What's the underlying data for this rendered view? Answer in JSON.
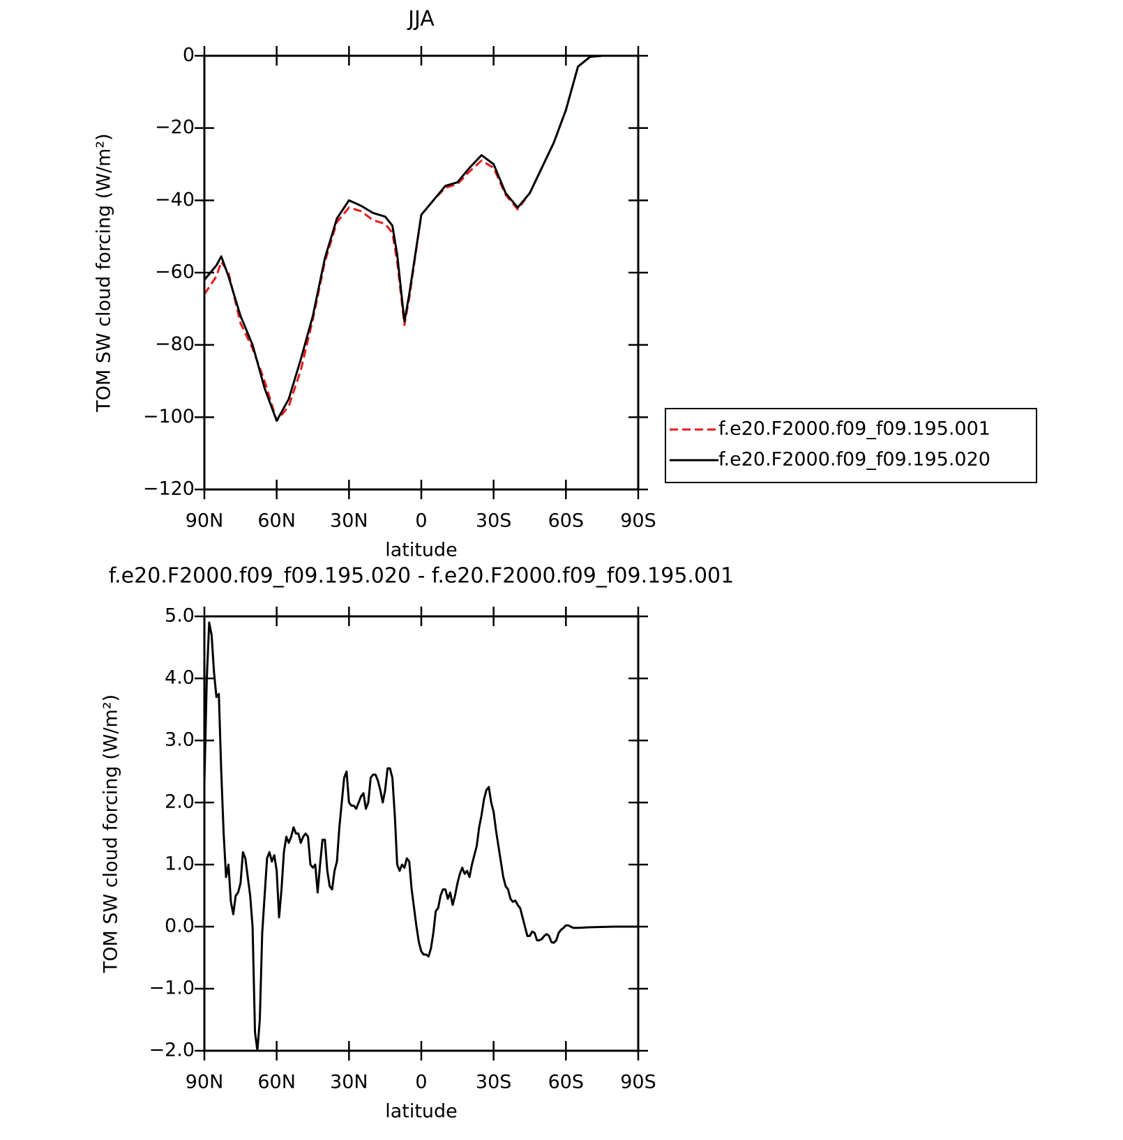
{
  "chart_data": [
    {
      "type": "line",
      "title": "JJA",
      "xlabel": "latitude",
      "ylabel": "TOM SW cloud forcing (W/m²)",
      "x": [
        90,
        85,
        83,
        80,
        75,
        70,
        65,
        60,
        55,
        50,
        45,
        40,
        35,
        30,
        25,
        20,
        15,
        12,
        10,
        7,
        5,
        0,
        -5,
        -10,
        -15,
        -20,
        -25,
        -30,
        -35,
        -40,
        -45,
        -50,
        -55,
        -60,
        -65,
        -70,
        -75,
        -80,
        -85,
        -90
      ],
      "series": [
        {
          "name": "f.e20.F2000.f09_f09.195.001",
          "color": "#e41a1c",
          "dashed": true,
          "values": [
            -66,
            -61,
            -57,
            -60,
            -74,
            -81,
            -90,
            -101,
            -97,
            -87,
            -73,
            -57,
            -46,
            -42,
            -43,
            -45.5,
            -46.5,
            -49,
            -57,
            -74.5,
            -67,
            -44,
            -40,
            -36.5,
            -35.5,
            -32,
            -29,
            -31,
            -38.5,
            -42.5,
            -38,
            -31,
            -24,
            -15,
            -3,
            -0.3,
            0,
            0,
            0,
            0
          ]
        },
        {
          "name": "f.e20.F2000.f09_f09.195.020",
          "color": "#000000",
          "dashed": false,
          "values": [
            -62,
            -58,
            -55.5,
            -61,
            -72,
            -80,
            -92,
            -101,
            -95,
            -84,
            -72,
            -56,
            -45,
            -40,
            -41.5,
            -43.5,
            -44.5,
            -47,
            -55,
            -73.5,
            -66,
            -44,
            -40,
            -36,
            -35,
            -31,
            -27.5,
            -30,
            -38,
            -42,
            -38,
            -31,
            -24,
            -15,
            -3,
            -0.3,
            0,
            0,
            0,
            0
          ]
        }
      ],
      "xlim": [
        90,
        -90
      ],
      "ylim": [
        -120,
        0
      ],
      "xticks": [
        {
          "value": 90,
          "label": "90N"
        },
        {
          "value": 60,
          "label": "60N"
        },
        {
          "value": 30,
          "label": "30N"
        },
        0,
        {
          "value": -30,
          "label": "30S"
        },
        {
          "value": -60,
          "label": "60S"
        },
        {
          "value": -90,
          "label": "90S"
        }
      ],
      "yticks": [
        0,
        {
          "value": -20,
          "label": "−20"
        },
        {
          "value": -40,
          "label": "−40"
        },
        {
          "value": -60,
          "label": "−60"
        },
        {
          "value": -80,
          "label": "−80"
        },
        {
          "value": -100,
          "label": "−100"
        },
        {
          "value": -120,
          "label": "−120"
        }
      ],
      "legend": "right"
    },
    {
      "type": "line",
      "title": "f.e20.F2000.f09_f09.195.020 - f.e20.F2000.f09_f09.195.001",
      "xlabel": "latitude",
      "ylabel": "TOM SW cloud forcing (W/m²)",
      "x": [
        90,
        89,
        88,
        87,
        86,
        85,
        84,
        83,
        82,
        81,
        80,
        79,
        78,
        77,
        76,
        75,
        74,
        73,
        72,
        71,
        70,
        69,
        68,
        67,
        66,
        65,
        64,
        63,
        62,
        61,
        60,
        59,
        58,
        57,
        56,
        55,
        54,
        53,
        52,
        51,
        50,
        49,
        48,
        47,
        46,
        45,
        44,
        43,
        42,
        41,
        40,
        39,
        38,
        37,
        36,
        35,
        34,
        33,
        32,
        31,
        30,
        29,
        28,
        27,
        26,
        25,
        24,
        23,
        22,
        21,
        20,
        19,
        18,
        17,
        16,
        15,
        14,
        13,
        12,
        11,
        10,
        9,
        8,
        7,
        6,
        5,
        4,
        3,
        2,
        1,
        0,
        -1,
        -2,
        -3,
        -4,
        -5,
        -6,
        -7,
        -8,
        -9,
        -10,
        -11,
        -12,
        -13,
        -14,
        -15,
        -16,
        -17,
        -18,
        -19,
        -20,
        -21,
        -22,
        -23,
        -24,
        -25,
        -26,
        -27,
        -28,
        -29,
        -30,
        -31,
        -32,
        -33,
        -34,
        -35,
        -36,
        -37,
        -38,
        -39,
        -40,
        -41,
        -42,
        -43,
        -44,
        -45,
        -46,
        -47,
        -48,
        -49,
        -50,
        -51,
        -52,
        -53,
        -54,
        -55,
        -56,
        -57,
        -58,
        -59,
        -60,
        -61,
        -62,
        -63,
        -65,
        -70,
        -80,
        -90
      ],
      "series": [
        {
          "color": "#000000",
          "dashed": false,
          "values": [
            2.3,
            4.0,
            4.9,
            4.7,
            4.1,
            3.7,
            3.75,
            2.5,
            1.5,
            0.8,
            1.0,
            0.4,
            0.2,
            0.5,
            0.55,
            0.7,
            1.2,
            1.1,
            0.8,
            0.5,
            0.0,
            -1.7,
            -2.0,
            -1.5,
            -0.1,
            0.5,
            1.1,
            1.2,
            1.05,
            1.15,
            0.9,
            0.15,
            0.6,
            1.2,
            1.45,
            1.35,
            1.45,
            1.6,
            1.5,
            1.5,
            1.35,
            1.45,
            1.5,
            1.45,
            1.0,
            0.95,
            1.0,
            0.55,
            1.0,
            1.4,
            1.4,
            0.9,
            0.65,
            0.6,
            0.9,
            1.05,
            1.6,
            2.0,
            2.4,
            2.5,
            2.0,
            1.95,
            1.95,
            1.9,
            2.0,
            2.1,
            2.15,
            1.9,
            2.0,
            2.4,
            2.45,
            2.45,
            2.35,
            2.2,
            2.0,
            2.2,
            2.55,
            2.55,
            2.4,
            1.8,
            1.0,
            0.9,
            1.0,
            0.95,
            1.1,
            1.05,
            0.6,
            0.3,
            0.0,
            -0.25,
            -0.4,
            -0.45,
            -0.45,
            -0.48,
            -0.35,
            -0.1,
            0.25,
            0.3,
            0.5,
            0.6,
            0.6,
            0.45,
            0.55,
            0.35,
            0.5,
            0.7,
            0.85,
            0.95,
            0.85,
            0.9,
            0.8,
            1.0,
            1.15,
            1.3,
            1.6,
            1.8,
            2.05,
            2.2,
            2.25,
            2.0,
            1.85,
            1.55,
            1.3,
            1.05,
            0.8,
            0.65,
            0.6,
            0.45,
            0.4,
            0.42,
            0.35,
            0.3,
            0.15,
            0.0,
            -0.15,
            -0.15,
            -0.08,
            -0.1,
            -0.22,
            -0.22,
            -0.2,
            -0.15,
            -0.12,
            -0.15,
            -0.25,
            -0.26,
            -0.22,
            -0.1,
            -0.05,
            -0.02,
            0.02,
            0.02,
            0.0,
            -0.02,
            -0.02,
            -0.01,
            0.0,
            0.0
          ]
        }
      ],
      "xlim": [
        90,
        -90
      ],
      "ylim": [
        -2,
        5
      ],
      "xticks": [
        {
          "value": 90,
          "label": "90N"
        },
        {
          "value": 60,
          "label": "60N"
        },
        {
          "value": 30,
          "label": "30N"
        },
        0,
        {
          "value": -30,
          "label": "30S"
        },
        {
          "value": -60,
          "label": "60S"
        },
        {
          "value": -90,
          "label": "90S"
        }
      ],
      "yticks": [
        {
          "value": 5,
          "label": "5.0"
        },
        {
          "value": 4,
          "label": "4.0"
        },
        {
          "value": 3,
          "label": "3.0"
        },
        {
          "value": 2,
          "label": "2.0"
        },
        {
          "value": 1,
          "label": "1.0"
        },
        {
          "value": 0,
          "label": "0.0"
        },
        {
          "value": -1,
          "label": "−1.0"
        },
        {
          "value": -2,
          "label": "−2.0"
        }
      ]
    }
  ]
}
